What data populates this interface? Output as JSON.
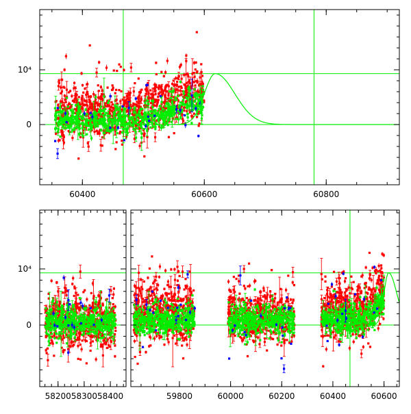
{
  "chart_data": [
    {
      "type": "scatter",
      "title": "",
      "xlabel": "",
      "ylabel": "",
      "xlim": [
        60330,
        60920
      ],
      "ylim": [
        -10000,
        20000
      ],
      "xticks": [
        60400,
        60600,
        60800
      ],
      "yticks": [
        {
          "value": 0,
          "label": "0"
        },
        {
          "value": 10000,
          "label": "10⁴"
        }
      ],
      "hlines": [
        0,
        9300
      ],
      "vlines": [
        60467,
        60780
      ],
      "model_curve": {
        "peak_x": 60618,
        "peak_y": 9300,
        "sigma_left": 18,
        "sigma_right": 32,
        "x_end": 60920
      },
      "series": [
        {
          "color": "#ff0000",
          "marker": "point-errorbar",
          "x_range": [
            60355,
            60600
          ],
          "y_trend": [
            [
              60355,
              2200
            ],
            [
              60500,
              2600
            ],
            [
              60600,
              6500
            ]
          ],
          "y_spread": 3000,
          "points": 900,
          "seed": 11
        },
        {
          "color": "#00ee00",
          "marker": "point-errorbar",
          "x_range": [
            60355,
            60600
          ],
          "y_trend": [
            [
              60355,
              700
            ],
            [
              60500,
              800
            ],
            [
              60600,
              4500
            ]
          ],
          "y_spread": 1500,
          "points": 650,
          "seed": 23
        },
        {
          "color": "#0000ff",
          "marker": "point-errorbar",
          "x_range": [
            60355,
            60600
          ],
          "y_trend": [
            [
              60355,
              500
            ],
            [
              60600,
              3000
            ]
          ],
          "y_spread": 3500,
          "points": 30,
          "seed": 37
        }
      ]
    },
    {
      "type": "scatter",
      "broken_axis": true,
      "title": "",
      "xlabel": "",
      "ylabel": "",
      "ylim": [
        -10000,
        20000
      ],
      "yticks": [
        {
          "value": 0,
          "label": "0"
        },
        {
          "value": 10000,
          "label": "10⁴"
        }
      ],
      "hlines": [
        0,
        9300
      ],
      "vlines": [
        60467
      ],
      "segments": [
        {
          "xlim": [
            58130,
            58460
          ],
          "xticks": [
            58200,
            58300,
            58400
          ]
        },
        {
          "xlim": [
            59610,
            60660
          ],
          "xticks": [
            59800,
            60000,
            60200,
            60400,
            60600
          ]
        }
      ],
      "observing_seasons": [
        {
          "x_range": [
            58150,
            58420
          ],
          "red_level": 800,
          "green_level": 500
        },
        {
          "x_range": [
            59620,
            59860
          ],
          "red_level": 2500,
          "green_level": 700
        },
        {
          "x_range": [
            59990,
            60250
          ],
          "red_level": 1500,
          "green_level": 700
        },
        {
          "x_range": [
            60355,
            60600
          ],
          "red_level": 2400,
          "green_level": 900
        }
      ],
      "model_curve": {
        "peak_x": 60618,
        "peak_y": 9300,
        "sigma_left": 18,
        "sigma_right": 32
      },
      "series": [
        {
          "color": "#ff0000",
          "marker": "point-errorbar",
          "y_spread": 3200,
          "points_per_season": 520,
          "seed": 51
        },
        {
          "color": "#00ee00",
          "marker": "point-errorbar",
          "y_spread": 1500,
          "points_per_season": 420,
          "seed": 67
        },
        {
          "color": "#0000ff",
          "marker": "point-errorbar",
          "y_spread": 3500,
          "points_per_season": 18,
          "seed": 79
        }
      ]
    }
  ]
}
